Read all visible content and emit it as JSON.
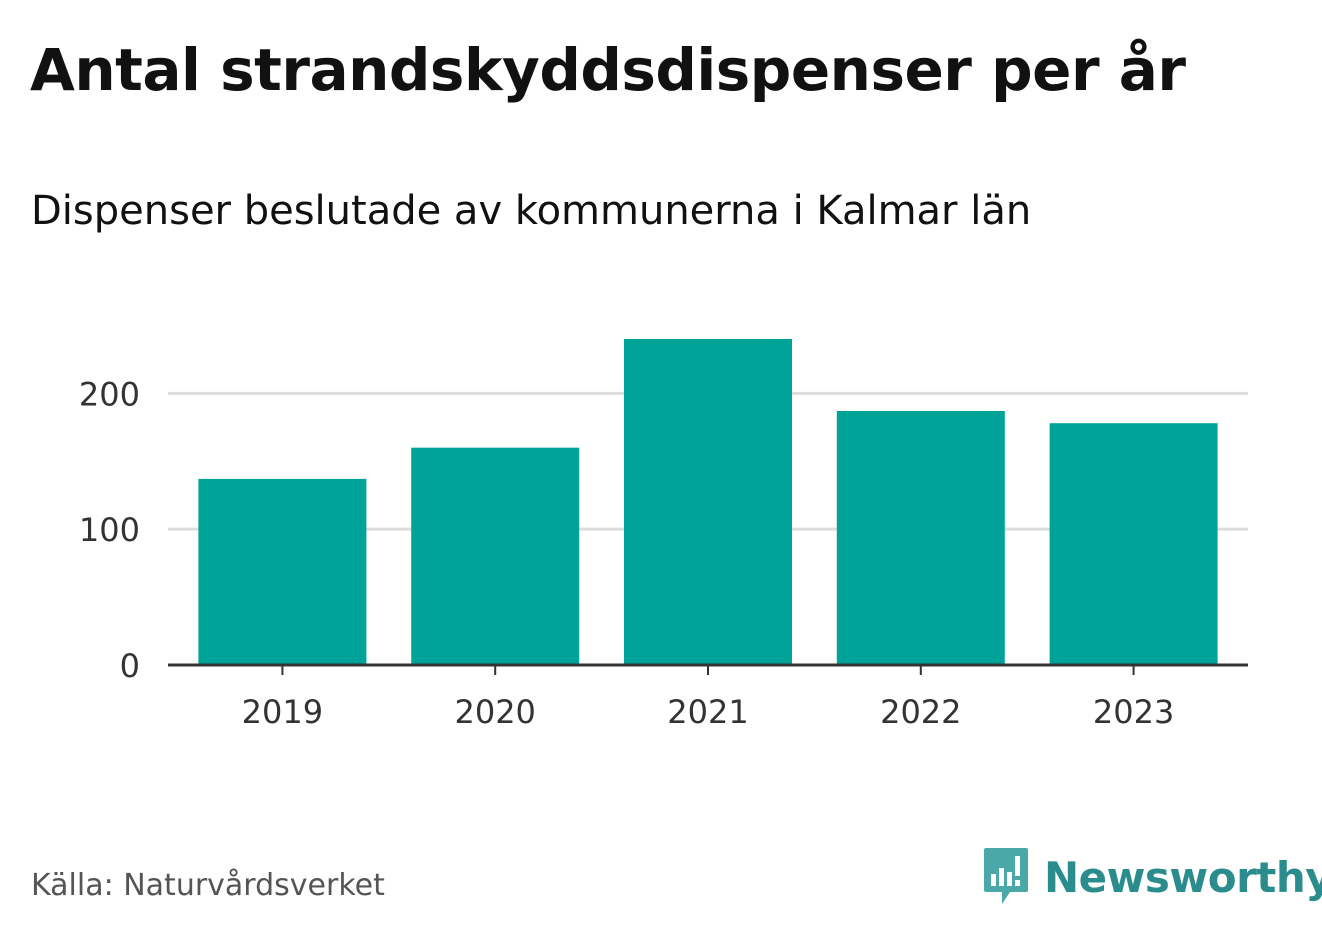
{
  "header": {
    "title": "Antal strandskyddsdispenser per år",
    "subtitle": "Dispenser beslutade av kommunerna i Kalmar län"
  },
  "footer": {
    "source": "Källa: Naturvårdsverket",
    "brand": "Newsworthy",
    "brand_icon": "newsworthy-logo-icon"
  },
  "colors": {
    "bar": "#00a398",
    "grid": "#dddddd",
    "axis": "#333333",
    "brand": "#2a8c8c"
  },
  "chart_data": {
    "type": "bar",
    "title": "Antal strandskyddsdispenser per år",
    "subtitle": "Dispenser beslutade av kommunerna i Kalmar län",
    "categories": [
      "2019",
      "2020",
      "2021",
      "2022",
      "2023"
    ],
    "values": [
      137,
      160,
      240,
      187,
      178
    ],
    "xlabel": "",
    "ylabel": "",
    "ylim": [
      0,
      240
    ],
    "yticks": [
      0,
      100,
      200
    ],
    "ytick_labels": [
      "0",
      "100",
      "200"
    ],
    "grid": true,
    "legend": "none"
  }
}
